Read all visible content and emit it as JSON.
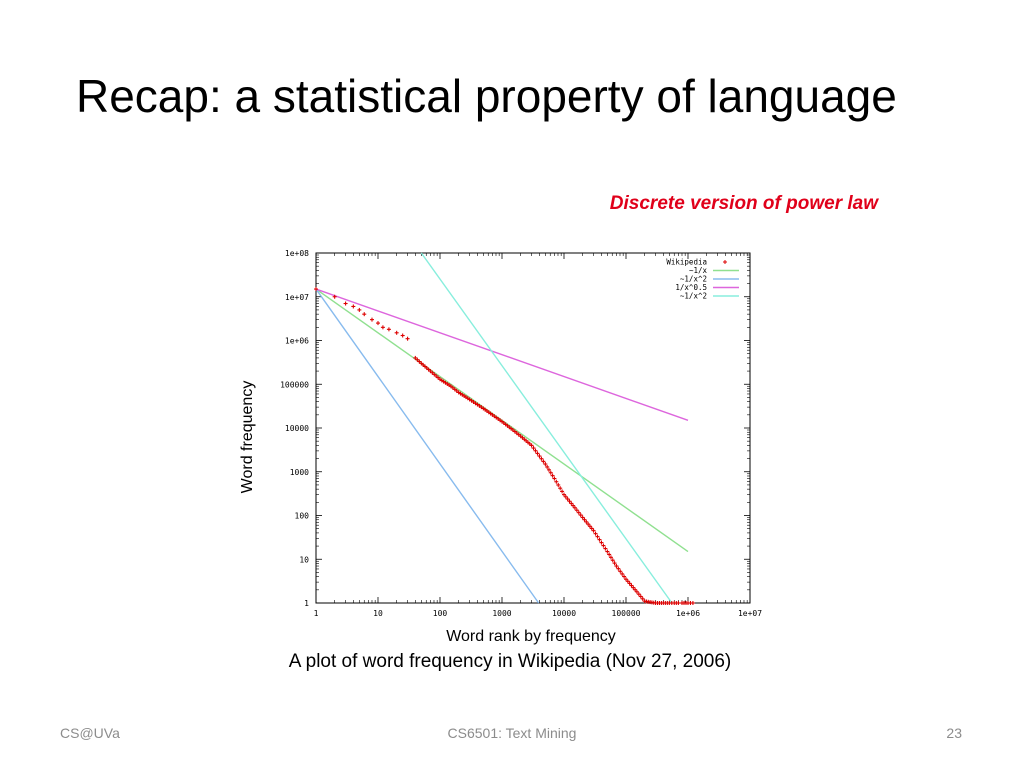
{
  "slide": {
    "title": "Recap: a statistical property of language",
    "annotation": "Discrete version of power law",
    "caption": "A plot of word frequency in Wikipedia (Nov 27, 2006)",
    "footer_left": "CS@UVa",
    "footer_center": "CS6501: Text Mining",
    "page_number": "23"
  },
  "colors": {
    "annotation": "#e0001a",
    "wikipedia": "#dd0000",
    "inv_x": "#90e090",
    "inv_x2_blue": "#88bbee",
    "inv_x05": "#dd66dd",
    "inv_x2_cyan": "#88eedd"
  },
  "chart_data": {
    "type": "scatter",
    "title": "",
    "xlabel": "Word rank by frequency",
    "ylabel": "Word frequency",
    "x_scale": "log",
    "y_scale": "log",
    "xlim": [
      1,
      10000000
    ],
    "ylim": [
      1,
      100000000
    ],
    "x_ticks": [
      "1",
      "10",
      "100",
      "1000",
      "10000",
      "100000",
      "1e+06",
      "1e+07"
    ],
    "y_ticks": [
      "1",
      "10",
      "100",
      "1000",
      "10000",
      "100000",
      "1e+06",
      "1e+07",
      "1e+08"
    ],
    "legend_position": "top-right",
    "series": [
      {
        "name": "Wikipedia",
        "kind": "points",
        "color": "#dd0000",
        "x": [
          1,
          2,
          3,
          4,
          5,
          6,
          8,
          10,
          12,
          15,
          20,
          25,
          30,
          40,
          50,
          70,
          100,
          150,
          200,
          300,
          500,
          700,
          1000,
          1500,
          2000,
          3000,
          5000,
          7000,
          10000,
          15000,
          20000,
          30000,
          50000,
          70000,
          100000,
          150000,
          200000,
          300000,
          400000,
          500000,
          600000,
          700000,
          800000,
          1000000,
          1200000
        ],
        "y": [
          15000000,
          10000000,
          7000000,
          6000000,
          5000000,
          4000000,
          3000000,
          2500000,
          2000000,
          1800000,
          1500000,
          1300000,
          1100000,
          400000,
          300000,
          200000,
          130000,
          90000,
          65000,
          45000,
          28000,
          20000,
          14000,
          9000,
          6500,
          4000,
          1500,
          700,
          300,
          150,
          90,
          45,
          15,
          7,
          3.5,
          1.8,
          1.1,
          1,
          1,
          1,
          1,
          1,
          1,
          1,
          1
        ]
      },
      {
        "name": "~1/x",
        "kind": "line",
        "color": "#90e090",
        "x": [
          1,
          1000000
        ],
        "y": [
          15000000,
          15
        ]
      },
      {
        "name": "~1/x^2",
        "kind": "line",
        "color": "#88bbee",
        "x": [
          1,
          3900
        ],
        "y": [
          15000000,
          1
        ]
      },
      {
        "name": "1/x^0.5",
        "kind": "line",
        "color": "#dd66dd",
        "x": [
          1,
          1000000
        ],
        "y": [
          15000000,
          15000
        ]
      },
      {
        "name": "~1/x^2",
        "kind": "line",
        "color": "#88eedd",
        "x": [
          50,
          550000
        ],
        "y": [
          100000000,
          1
        ]
      }
    ]
  }
}
